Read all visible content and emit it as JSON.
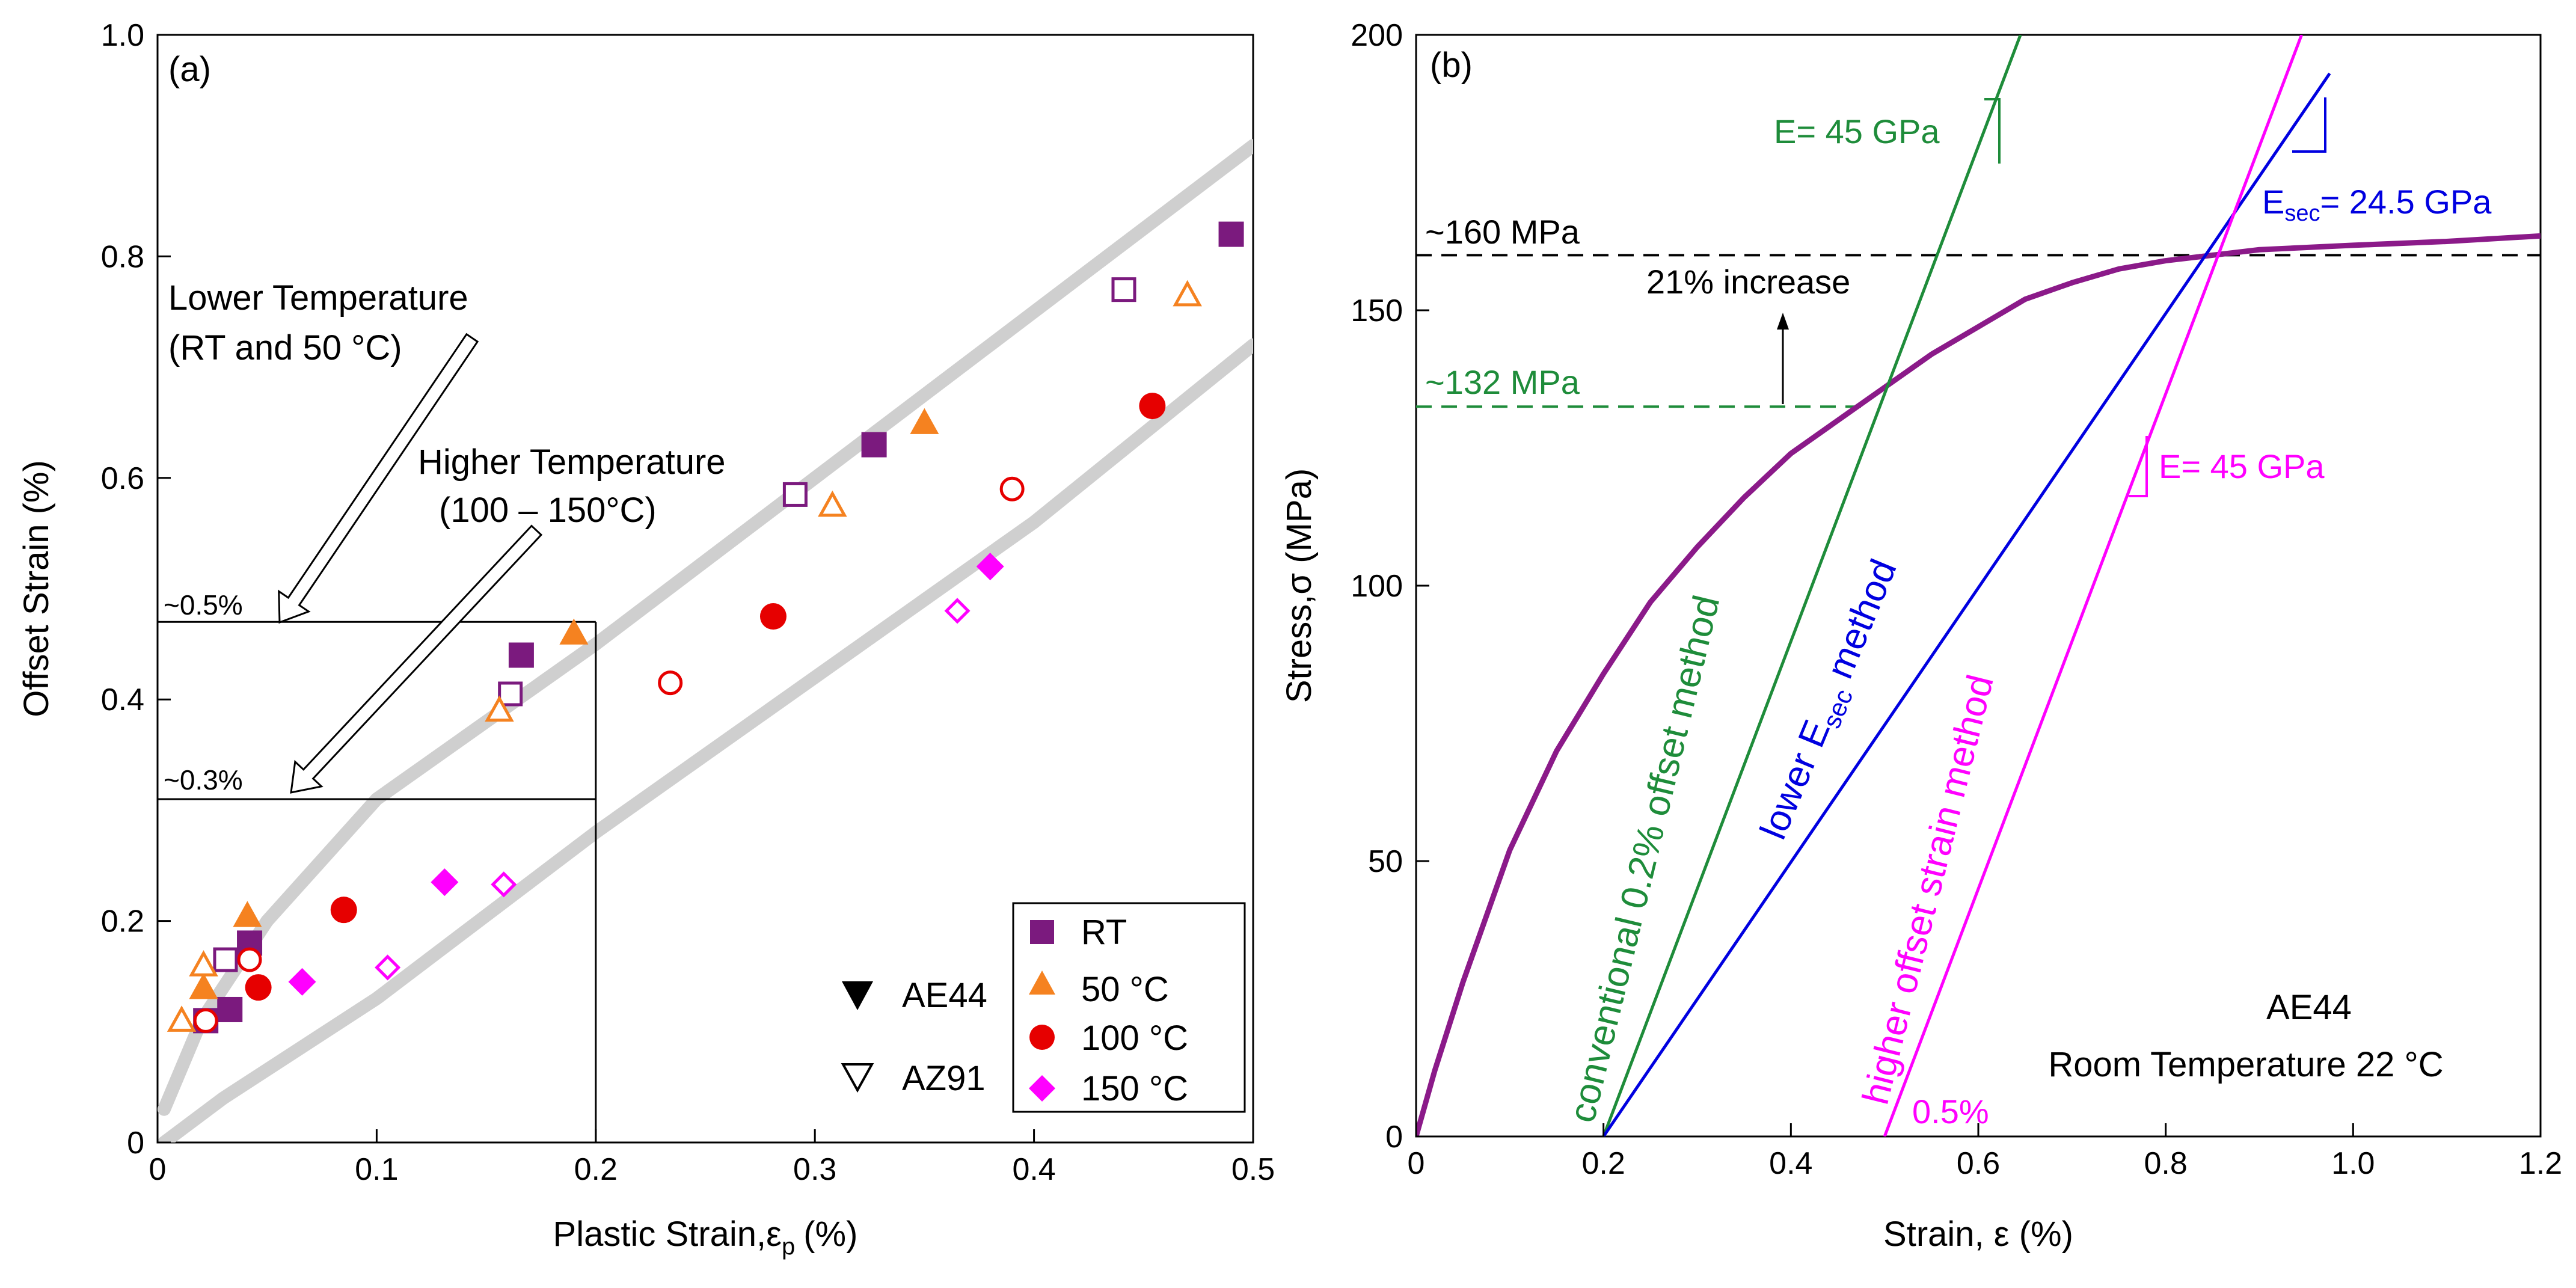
{
  "chart_data": [
    {
      "panel": "(a)",
      "type": "scatter",
      "xlabel_main": "Plastic Strain,",
      "xlabel_symbol": "ε",
      "xlabel_sub": "p",
      "xlabel_unit": "(%)",
      "ylabel": "Offset Strain (%)",
      "xlim": [
        0,
        0.5
      ],
      "ylim": [
        0,
        1.0
      ],
      "xticks": [
        "0",
        "0.1",
        "0.2",
        "0.3",
        "0.4",
        "0.5"
      ],
      "yticks": [
        "0",
        "0.2",
        "0.4",
        "0.6",
        "0.8",
        "1.0"
      ],
      "series": [
        {
          "name": "RT",
          "alloy": "AE44",
          "color": "#7b1a7e",
          "marker": "square",
          "filled": true,
          "points": [
            [
              0.022,
              0.11
            ],
            [
              0.033,
              0.12
            ],
            [
              0.042,
              0.18
            ],
            [
              0.166,
              0.44
            ],
            [
              0.327,
              0.63
            ],
            [
              0.49,
              0.82
            ]
          ]
        },
        {
          "name": "RT",
          "alloy": "AZ91",
          "color": "#7b1a7e",
          "marker": "square",
          "filled": false,
          "points": [
            [
              0.031,
              0.165
            ],
            [
              0.161,
              0.405
            ],
            [
              0.291,
              0.585
            ],
            [
              0.441,
              0.77
            ]
          ]
        },
        {
          "name": "50 °C",
          "alloy": "AE44",
          "color": "#f58220",
          "marker": "triangle",
          "filled": true,
          "points": [
            [
              0.021,
              0.14
            ],
            [
              0.041,
              0.205
            ],
            [
              0.19,
              0.46
            ],
            [
              0.35,
              0.65
            ]
          ]
        },
        {
          "name": "50 °C",
          "alloy": "AZ91",
          "color": "#f58220",
          "marker": "triangle",
          "filled": false,
          "points": [
            [
              0.011,
              0.11
            ],
            [
              0.021,
              0.16
            ],
            [
              0.156,
              0.39
            ],
            [
              0.308,
              0.575
            ],
            [
              0.47,
              0.765
            ]
          ]
        },
        {
          "name": "100 °C",
          "alloy": "AE44",
          "color": "#e60000",
          "marker": "circle",
          "filled": true,
          "points": [
            [
              0.046,
              0.14
            ],
            [
              0.085,
              0.21
            ],
            [
              0.281,
              0.475
            ],
            [
              0.454,
              0.665
            ]
          ]
        },
        {
          "name": "100 °C",
          "alloy": "AZ91",
          "color": "#e60000",
          "marker": "circle",
          "filled": false,
          "points": [
            [
              0.022,
              0.11
            ],
            [
              0.042,
              0.165
            ],
            [
              0.234,
              0.415
            ],
            [
              0.39,
              0.59
            ]
          ]
        },
        {
          "name": "150 °C",
          "alloy": "AE44",
          "color": "#ff00ff",
          "marker": "diamond",
          "filled": true,
          "points": [
            [
              0.066,
              0.145
            ],
            [
              0.131,
              0.235
            ],
            [
              0.38,
              0.52
            ]
          ]
        },
        {
          "name": "150 °C",
          "alloy": "AZ91",
          "color": "#ff00ff",
          "marker": "diamond",
          "filled": false,
          "points": [
            [
              0.105,
              0.158
            ],
            [
              0.158,
              0.233
            ],
            [
              0.365,
              0.48
            ]
          ]
        }
      ],
      "trend_bands": [
        {
          "label": "upper",
          "points": [
            [
              0.003,
              0.03
            ],
            [
              0.02,
              0.11
            ],
            [
              0.05,
              0.2
            ],
            [
              0.1,
              0.31
            ],
            [
              0.2,
              0.45
            ],
            [
              0.3,
              0.6
            ],
            [
              0.4,
              0.75
            ],
            [
              0.5,
              0.9
            ]
          ]
        },
        {
          "label": "lower",
          "points": [
            [
              0.003,
              0.0
            ],
            [
              0.03,
              0.04
            ],
            [
              0.1,
              0.13
            ],
            [
              0.2,
              0.28
            ],
            [
              0.3,
              0.42
            ],
            [
              0.4,
              0.56
            ],
            [
              0.5,
              0.72
            ]
          ]
        }
      ],
      "guides": [
        {
          "label": "~0.5%",
          "y": 0.47,
          "x_end": 0.2
        },
        {
          "label": "~0.3%",
          "y": 0.31,
          "x_end": 0.2
        },
        {
          "vertical_x": 0.2,
          "y_top": 0.47
        }
      ],
      "annotations": {
        "low_temp_line1": "Lower Temperature",
        "low_temp_line2": "(RT and 50 °C)",
        "high_temp_line1": "Higher Temperature",
        "high_temp_line2": "(100 – 150°C)"
      },
      "legend": {
        "position": "bottom-right",
        "entries": [
          {
            "label": "RT",
            "color": "#7b1a7e",
            "marker": "square"
          },
          {
            "label": "50 °C",
            "color": "#f58220",
            "marker": "triangle"
          },
          {
            "label": "100 °C",
            "color": "#e60000",
            "marker": "circle"
          },
          {
            "label": "150 °C",
            "color": "#ff00ff",
            "marker": "diamond"
          }
        ],
        "alloy_entries": [
          {
            "label": "AE44",
            "filled": true
          },
          {
            "label": "AZ91",
            "filled": false
          }
        ]
      }
    },
    {
      "panel": "(b)",
      "type": "line",
      "xlabel": "Strain, ε (%)",
      "ylabel": "Stress,σ (MPa)",
      "xlim": [
        0,
        1.2
      ],
      "ylim": [
        0,
        200
      ],
      "xticks": [
        "0",
        "0.2",
        "0.4",
        "0.6",
        "0.8",
        "1.0",
        "1.2"
      ],
      "yticks": [
        "0",
        "50",
        "100",
        "150",
        "200"
      ],
      "series": [
        {
          "name": "stress-strain curve AE44",
          "color": "#8b1a89",
          "points": [
            [
              0,
              0
            ],
            [
              0.02,
              12
            ],
            [
              0.05,
              28
            ],
            [
              0.1,
              52
            ],
            [
              0.15,
              70
            ],
            [
              0.2,
              84
            ],
            [
              0.25,
              97
            ],
            [
              0.3,
              107
            ],
            [
              0.35,
              116
            ],
            [
              0.4,
              124
            ],
            [
              0.45,
              130
            ],
            [
              0.5,
              136
            ],
            [
              0.55,
              142
            ],
            [
              0.6,
              147
            ],
            [
              0.65,
              152
            ],
            [
              0.7,
              155
            ],
            [
              0.75,
              157.5
            ],
            [
              0.8,
              159
            ],
            [
              0.85,
              160
            ],
            [
              0.9,
              161
            ],
            [
              1.0,
              161.8
            ],
            [
              1.1,
              162.5
            ],
            [
              1.2,
              163.5
            ]
          ]
        },
        {
          "name": "conventional 0.2% offset method",
          "color": "#1e8c3a",
          "points": [
            [
              0.2,
              0
            ],
            [
              0.645,
              200
            ]
          ]
        },
        {
          "name": "lower E_sec method",
          "color": "#0000e0",
          "points": [
            [
              0.2,
              0
            ],
            [
              0.975,
              193
            ]
          ]
        },
        {
          "name": "higher offset strain method",
          "color": "#ff00ff",
          "points": [
            [
              0.5,
              0
            ],
            [
              0.945,
              200
            ]
          ]
        }
      ],
      "reference_lines": [
        {
          "label": "~160 MPa",
          "y": 160,
          "color": "#000000",
          "style": "dashed"
        },
        {
          "label": "~132 MPa",
          "y": 132.5,
          "color": "#1e8c3a",
          "style": "dashed"
        }
      ],
      "annotations": {
        "increase": "21% increase",
        "e_green": "E= 45 GPa",
        "e_magenta": "E= 45 GPa",
        "esec_main": "E",
        "esec_sub": "sec",
        "esec_value": "= 24.5 GPa",
        "green_method": "conventional 0.2% offset method",
        "blue_method_prefix": "lower E",
        "blue_method_sub": "sec",
        "blue_method_suffix": " method",
        "magenta_method": "higher offset strain method",
        "offset_label": "0.5%",
        "material_line1": "AE44",
        "material_line2": "Room Temperature 22 °C"
      }
    }
  ]
}
